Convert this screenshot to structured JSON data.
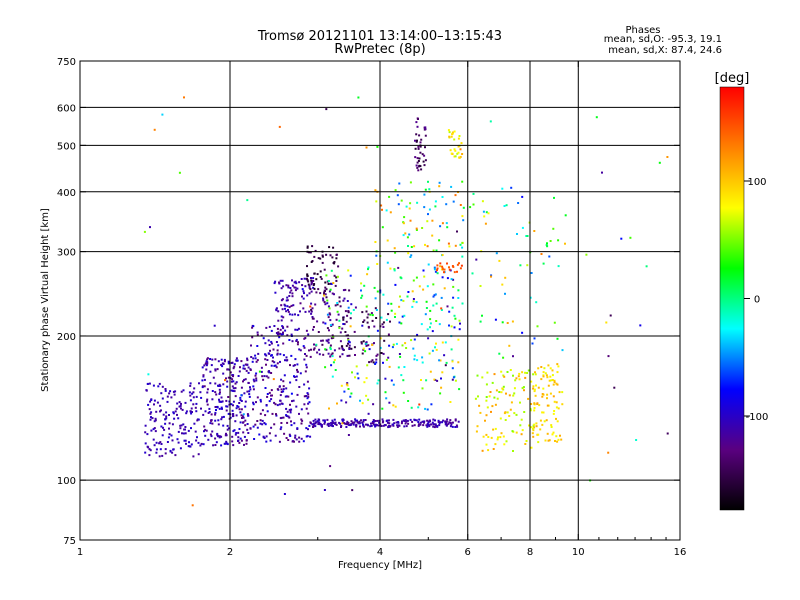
{
  "chart_data": {
    "type": "scatter",
    "title": "Tromsø 20121101 13:14:00–13:15:43",
    "subtitle": "RwPretec (8p)",
    "xlabel": "Frequency [MHz]",
    "ylabel": "Stationary phase Virtual Height [km]",
    "x_scale": "log",
    "y_scale": "log",
    "xlim": [
      1,
      16
    ],
    "ylim": [
      75,
      750
    ],
    "x_ticks": [
      1,
      2,
      4,
      6,
      8,
      10,
      16
    ],
    "x_tick_labels": [
      "1",
      "2",
      "4",
      "6",
      "8",
      "10",
      "16"
    ],
    "x_grid": [
      2,
      4,
      6,
      8,
      10
    ],
    "y_ticks": [
      75,
      100,
      200,
      300,
      400,
      500,
      600,
      750
    ],
    "y_tick_labels": [
      "75",
      "100",
      "200",
      "300",
      "400",
      "500",
      "600",
      "750"
    ],
    "y_grid": [
      100,
      200,
      300,
      400,
      500,
      600
    ],
    "grid": true,
    "stats": {
      "heading": "Phases",
      "line_o": "mean, sd,O: -95.3, 19.1",
      "line_x": "mean, sd,X: 87.4, 24.6"
    },
    "colorbar": {
      "label": "[deg]",
      "range": [
        -180,
        180
      ],
      "ticks": [
        100,
        0,
        -100
      ],
      "tick_labels": [
        "100",
        "0",
        "-100"
      ],
      "colors": [
        "#000000",
        "#5a0080",
        "#0000ff",
        "#00ffff",
        "#00ff00",
        "#ffff00",
        "#ff8000",
        "#ff0000"
      ]
    },
    "clusters": [
      {
        "x": [
          1.35,
          1.75
        ],
        "y": [
          112,
          160
        ],
        "phase": [
          -120,
          -95
        ],
        "n": 170
      },
      {
        "x": [
          1.75,
          2.2
        ],
        "y": [
          118,
          180
        ],
        "phase": [
          -130,
          -90
        ],
        "n": 260
      },
      {
        "x": [
          2.2,
          2.9
        ],
        "y": [
          120,
          210
        ],
        "phase": [
          -135,
          -85
        ],
        "n": 280
      },
      {
        "x": [
          2.45,
          2.95
        ],
        "y": [
          215,
          265
        ],
        "phase": [
          -130,
          -95
        ],
        "n": 90
      },
      {
        "x": [
          2.85,
          3.3
        ],
        "y": [
          250,
          310
        ],
        "phase": [
          -165,
          -140
        ],
        "n": 60
      },
      {
        "x": [
          2.9,
          3.5
        ],
        "y": [
          180,
          250
        ],
        "phase": [
          -150,
          -110
        ],
        "n": 90
      },
      {
        "x": [
          3.3,
          4.2
        ],
        "y": [
          175,
          230
        ],
        "phase": [
          -165,
          -120
        ],
        "n": 60
      },
      {
        "x": [
          2.9,
          5.8
        ],
        "y": [
          129,
          134
        ],
        "phase": [
          -125,
          -95
        ],
        "n": 240
      },
      {
        "x": [
          3.1,
          5.8
        ],
        "y": [
          140,
          280
        ],
        "phase": [
          -125,
          110
        ],
        "n": 260
      },
      {
        "x": [
          3.9,
          5.9
        ],
        "y": [
          280,
          420
        ],
        "phase": [
          -60,
          140
        ],
        "n": 90
      },
      {
        "x": [
          4.7,
          4.95
        ],
        "y": [
          440,
          570
        ],
        "phase": [
          -160,
          -120
        ],
        "n": 40
      },
      {
        "x": [
          5.5,
          5.85
        ],
        "y": [
          470,
          540
        ],
        "phase": [
          60,
          110
        ],
        "n": 30
      },
      {
        "x": [
          5.2,
          5.85
        ],
        "y": [
          270,
          285
        ],
        "phase": [
          140,
          160
        ],
        "n": 20
      },
      {
        "x": [
          6.2,
          8.3
        ],
        "y": [
          115,
          170
        ],
        "phase": [
          50,
          120
        ],
        "n": 110
      },
      {
        "x": [
          8.1,
          9.3
        ],
        "y": [
          120,
          175
        ],
        "phase": [
          70,
          115
        ],
        "n": 90
      },
      {
        "x": [
          6.0,
          9.5
        ],
        "y": [
          180,
          400
        ],
        "phase": [
          -80,
          120
        ],
        "n": 60
      },
      {
        "x": [
          1.3,
          16
        ],
        "y": [
          85,
          650
        ],
        "phase": [
          -150,
          160
        ],
        "n": 70
      }
    ]
  }
}
